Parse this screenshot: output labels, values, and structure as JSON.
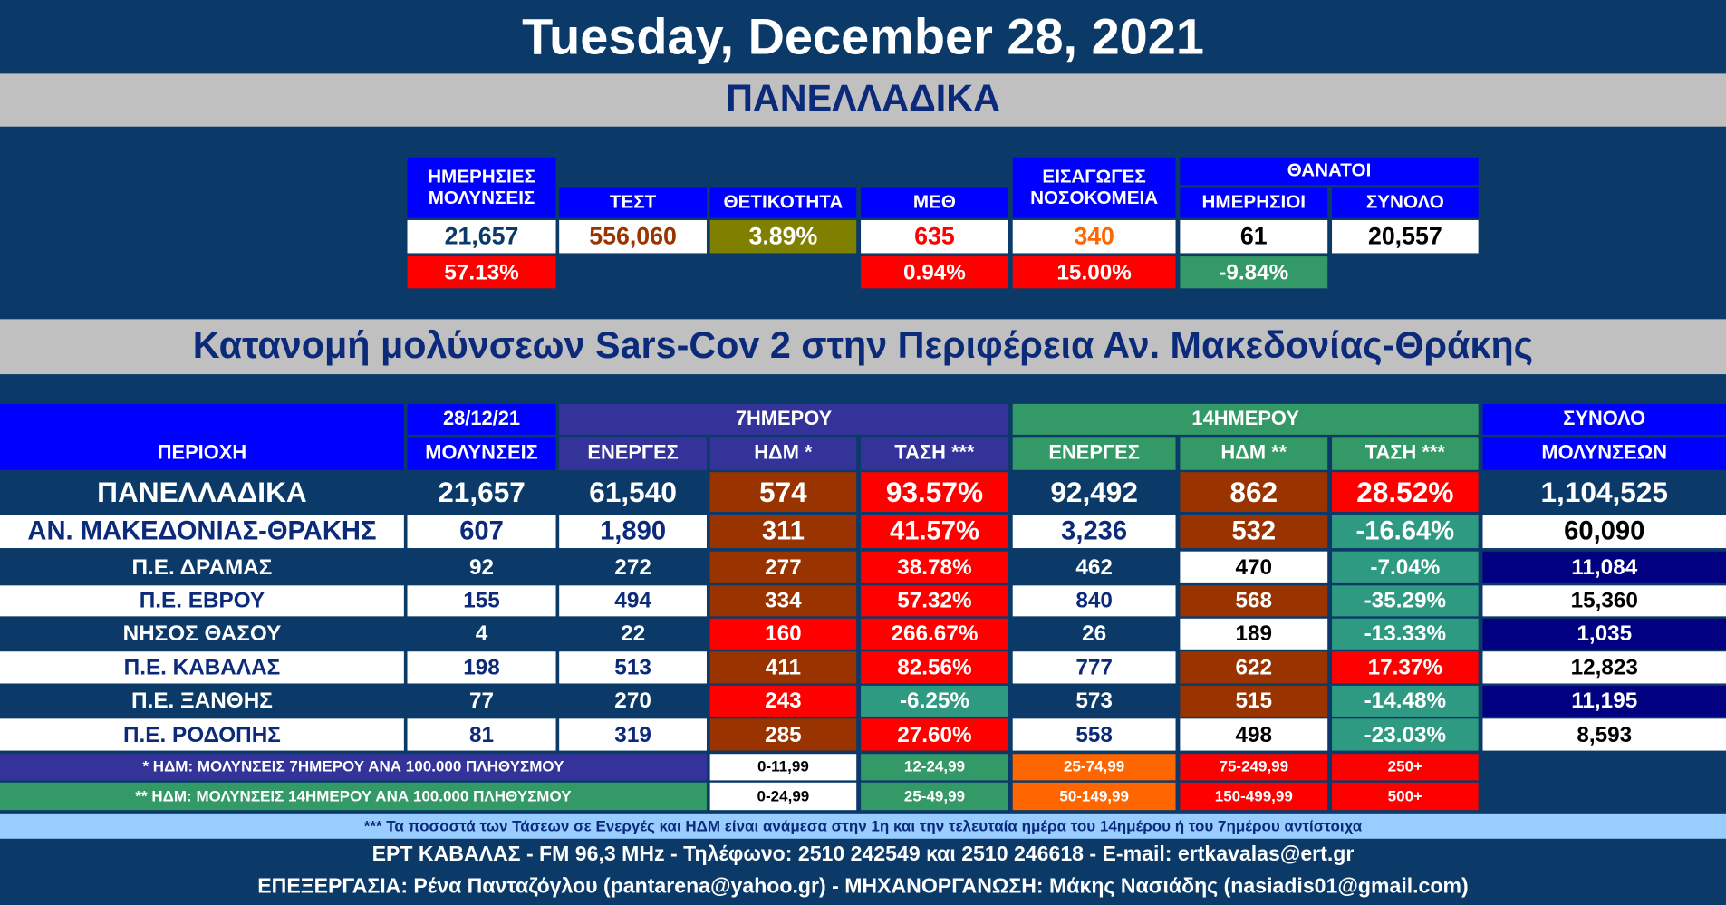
{
  "header": {
    "date": "Tuesday, December 28, 2021",
    "section": "ΠΑΝΕΛΛΑΔΙΚΑ"
  },
  "summary": {
    "group_header": "ΘΑΝΑΤΟΙ",
    "headers": [
      [
        "ΗΜΕΡΗΣΙΕΣ",
        "ΜΟΛΥΝΣΕΙΣ"
      ],
      [
        "ΤΕΣΤ"
      ],
      [
        "ΘΕΤΙΚΟΤΗΤΑ"
      ],
      [
        "ΜΕΘ"
      ],
      [
        "ΕΙΣΑΓΩΓΕΣ",
        "ΝΟΣΟΚΟΜΕΙΑ"
      ],
      [
        "ΗΜΕΡΗΣΙΟΙ"
      ],
      [
        "ΣΥΝΟΛΟ"
      ]
    ],
    "values": [
      "21,657",
      "556,060",
      "3.89%",
      "635",
      "340",
      "61",
      "20,557"
    ],
    "changes": [
      "57.13%",
      null,
      null,
      "0.94%",
      "15.00%",
      "-9.84%",
      null
    ]
  },
  "regional": {
    "title": "Κατανομή μολύνσεων Sars-Cov 2 στην Περιφέρεια Αν. Μακεδονίας-Θράκης",
    "group_headers": [
      "28/12/21",
      "7ΗΜΕΡΟΥ",
      "14ΗΜΕΡΟΥ",
      "ΣΥΝΟΛΟ"
    ],
    "headers": [
      "ΠΕΡΙΟΧΗ",
      "ΜΟΛΥΝΣΕΙΣ",
      "ΕΝΕΡΓΕΣ",
      "ΗΔΜ *",
      "ΤΑΣΗ ***",
      "ΕΝΕΡΓΕΣ",
      "ΗΔΜ **",
      "ΤΑΣΗ ***",
      "ΜΟΛΥΝΣΕΩΝ"
    ],
    "rows": [
      [
        "ΠΑΝΕΛΛΑΔΙΚΑ",
        "21,657",
        "61,540",
        "574",
        "93.57%",
        "92,492",
        "862",
        "28.52%",
        "1,104,525"
      ],
      [
        "ΑΝ. ΜΑΚΕΔΟΝΙΑΣ-ΘΡΑΚΗΣ",
        "607",
        "1,890",
        "311",
        "41.57%",
        "3,236",
        "532",
        "-16.64%",
        "60,090"
      ],
      [
        "Π.Ε. ΔΡΑΜΑΣ",
        "92",
        "272",
        "277",
        "38.78%",
        "462",
        "470",
        "-7.04%",
        "11,084"
      ],
      [
        "Π.Ε. ΕΒΡΟΥ",
        "155",
        "494",
        "334",
        "57.32%",
        "840",
        "568",
        "-35.29%",
        "15,360"
      ],
      [
        "ΝΗΣΟΣ ΘΑΣΟΥ",
        "4",
        "22",
        "160",
        "266.67%",
        "26",
        "189",
        "-13.33%",
        "1,035"
      ],
      [
        "Π.Ε. ΚΑΒΑΛΑΣ",
        "198",
        "513",
        "411",
        "82.56%",
        "777",
        "622",
        "17.37%",
        "12,823"
      ],
      [
        "Π.Ε. ΞΑΝΘΗΣ",
        "77",
        "270",
        "243",
        "-6.25%",
        "573",
        "515",
        "-14.48%",
        "11,195"
      ],
      [
        "Π.Ε. ΡΟΔΟΠΗΣ",
        "81",
        "319",
        "285",
        "27.60%",
        "558",
        "498",
        "-23.03%",
        "8,593"
      ]
    ]
  },
  "legend": [
    {
      "label": "* ΗΔΜ: ΜΟΛΥΝΣΕΙΣ 7ΗΜΕΡΟΥ ΑΝΑ 100.000 ΠΛΗΘΥΣΜΟΥ",
      "ranges": [
        "0-11,99",
        "12-24,99",
        "25-74,99",
        "75-249,99",
        "250+"
      ]
    },
    {
      "label": "** ΗΔΜ: ΜΟΛΥΝΣΕΙΣ 14ΗΜΕΡΟΥ ΑΝΑ 100.000 ΠΛΗΘΥΣΜΟΥ",
      "ranges": [
        "0-24,99",
        "25-49,99",
        "50-149,99",
        "150-499,99",
        "500+"
      ]
    }
  ],
  "footnote": "*** Τα ποσοστά των Τάσεων σε Ενεργές και ΗΔΜ είναι ανάμεσα στην 1η και την τελευταία ημέρα του 14ημέρου ή του 7ημέρου αντίστοιχα",
  "footer": [
    "ΕΡΤ ΚΑΒΑΛΑΣ - FM 96,3 MHz - Τηλέφωνο:  2510 242549 και 2510 246618 - E-mail: ertkavalas@ert.gr",
    "ΕΠΕΞΕΡΓΑΣΙΑ: Ρένα Πανταζόγλου (pantarena@yahoo.gr) - ΜΗΧΑΝΟΡΓΑΝΩΣΗ: Μάκης Νασιάδης (nasiadis01@gmail.com)"
  ]
}
